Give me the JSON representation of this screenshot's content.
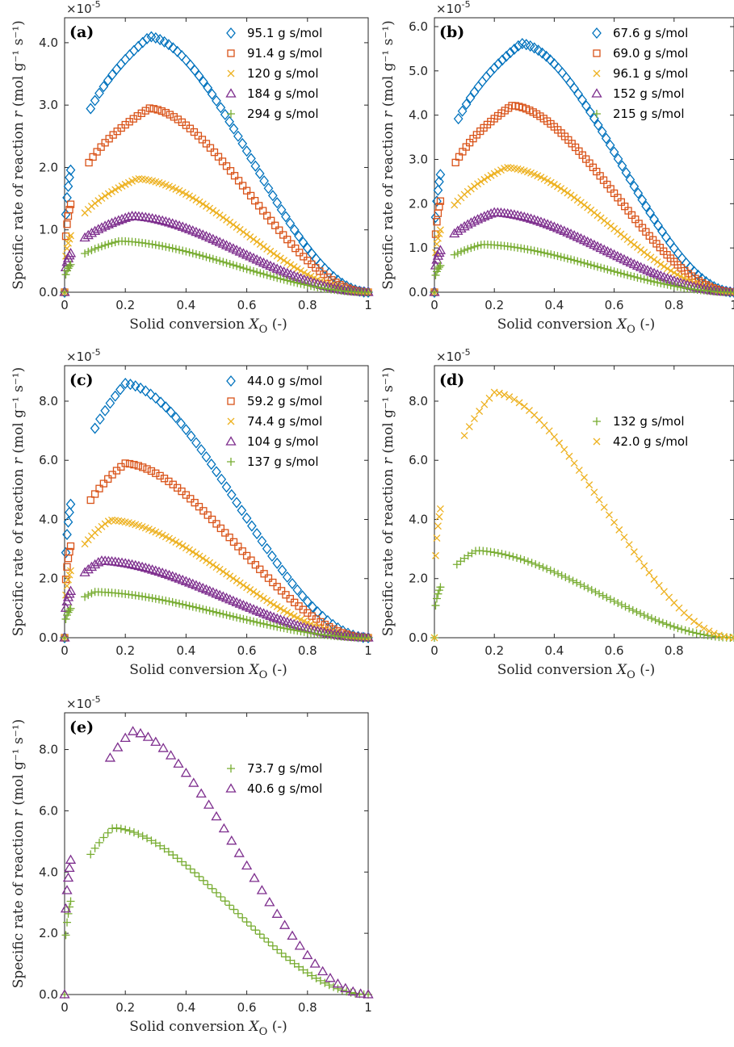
{
  "figure": {
    "y_exponent_label": "×10",
    "y_exponent_power": "-5",
    "xlabel_prefix": "Solid conversion ",
    "xlabel_var": "X",
    "xlabel_sub": "O",
    "xlabel_suffix": " (-)",
    "ylabel_prefix": "Specific rate of reaction ",
    "ylabel_var": "r",
    "ylabel_units": " (mol g⁻¹ s⁻¹)",
    "colors": {
      "blue": "#0072BD",
      "orange": "#D95319",
      "yellow": "#EDB120",
      "purple": "#7E2F8E",
      "green": "#77AC30"
    }
  },
  "chart_data": [
    {
      "type": "scatter",
      "panel": "(a)",
      "xlim": [
        0,
        1
      ],
      "ylim": [
        0,
        4.4
      ],
      "xticks": [
        0,
        0.2,
        0.4,
        0.6,
        0.8,
        1
      ],
      "xtick_labels": [
        "0",
        "0.2",
        "0.4",
        "0.6",
        "0.8",
        "1"
      ],
      "yticks": [
        0,
        1,
        2,
        3,
        4
      ],
      "ytick_labels": [
        "0.0",
        "1.0",
        "2.0",
        "3.0",
        "4.0"
      ],
      "legend_position": "top-right",
      "series": [
        {
          "name": "95.1 g s/mol",
          "marker": "diamond",
          "color": "#0072BD",
          "peak_x": 0.28,
          "peak_y": 4.1,
          "n": 70
        },
        {
          "name": "91.4 g s/mol",
          "marker": "square",
          "color": "#D95319",
          "peak_x": 0.28,
          "peak_y": 2.95,
          "n": 75
        },
        {
          "name": "120 g s/mol",
          "marker": "x",
          "color": "#EDB120",
          "peak_x": 0.24,
          "peak_y": 1.82,
          "n": 90
        },
        {
          "name": "184 g s/mol",
          "marker": "triangle",
          "color": "#7E2F8E",
          "peak_x": 0.22,
          "peak_y": 1.22,
          "n": 90
        },
        {
          "name": "294 g s/mol",
          "marker": "plus",
          "color": "#77AC30",
          "peak_x": 0.18,
          "peak_y": 0.82,
          "n": 90
        }
      ]
    },
    {
      "type": "scatter",
      "panel": "(b)",
      "xlim": [
        0,
        1
      ],
      "ylim": [
        0,
        6.2
      ],
      "xticks": [
        0,
        0.2,
        0.4,
        0.6,
        0.8,
        1
      ],
      "xtick_labels": [
        "0",
        "0.2",
        "0.4",
        "0.6",
        "0.8",
        "1"
      ],
      "yticks": [
        0,
        1,
        2,
        3,
        4,
        5,
        6
      ],
      "ytick_labels": [
        "0.0",
        "1.0",
        "2.0",
        "3.0",
        "4.0",
        "5.0",
        "6.0"
      ],
      "legend_position": "top-right",
      "series": [
        {
          "name": "67.6 g s/mol",
          "marker": "diamond",
          "color": "#0072BD",
          "peak_x": 0.29,
          "peak_y": 5.62,
          "n": 75
        },
        {
          "name": "69.0 g s/mol",
          "marker": "square",
          "color": "#D95319",
          "peak_x": 0.26,
          "peak_y": 4.22,
          "n": 85
        },
        {
          "name": "96.1 g s/mol",
          "marker": "x",
          "color": "#EDB120",
          "peak_x": 0.24,
          "peak_y": 2.82,
          "n": 90
        },
        {
          "name": "152 g s/mol",
          "marker": "triangle",
          "color": "#7E2F8E",
          "peak_x": 0.2,
          "peak_y": 1.8,
          "n": 90
        },
        {
          "name": "215 g s/mol",
          "marker": "plus",
          "color": "#77AC30",
          "peak_x": 0.16,
          "peak_y": 1.08,
          "n": 90
        }
      ]
    },
    {
      "type": "scatter",
      "panel": "(c)",
      "xlim": [
        0,
        1
      ],
      "ylim": [
        0,
        9.2
      ],
      "xticks": [
        0,
        0.2,
        0.4,
        0.6,
        0.8,
        1
      ],
      "xtick_labels": [
        "0",
        "0.2",
        "0.4",
        "0.6",
        "0.8",
        "1"
      ],
      "yticks": [
        0,
        2,
        4,
        6,
        8
      ],
      "ytick_labels": [
        "0.0",
        "2.0",
        "4.0",
        "6.0",
        "8.0"
      ],
      "legend_position": "top-right",
      "series": [
        {
          "name": "44.0 g s/mol",
          "marker": "diamond",
          "color": "#0072BD",
          "peak_x": 0.2,
          "peak_y": 8.6,
          "n": 60
        },
        {
          "name": "59.2 g s/mol",
          "marker": "square",
          "color": "#D95319",
          "peak_x": 0.2,
          "peak_y": 5.9,
          "n": 70
        },
        {
          "name": "74.4 g s/mol",
          "marker": "x",
          "color": "#EDB120",
          "peak_x": 0.15,
          "peak_y": 3.98,
          "n": 90
        },
        {
          "name": "104 g s/mol",
          "marker": "triangle",
          "color": "#7E2F8E",
          "peak_x": 0.12,
          "peak_y": 2.6,
          "n": 90
        },
        {
          "name": "137 g s/mol",
          "marker": "plus",
          "color": "#77AC30",
          "peak_x": 0.1,
          "peak_y": 1.55,
          "n": 90
        }
      ]
    },
    {
      "type": "scatter",
      "panel": "(d)",
      "xlim": [
        0,
        1
      ],
      "ylim": [
        0,
        9.2
      ],
      "xticks": [
        0,
        0.2,
        0.4,
        0.6,
        0.8
      ],
      "xtick_labels": [
        "0",
        "0.2",
        "0.4",
        "0.6",
        "0.8"
      ],
      "yticks": [
        0,
        2,
        4,
        6,
        8
      ],
      "ytick_labels": [
        "0.0",
        "2.0",
        "4.0",
        "6.0",
        "8.0"
      ],
      "legend_position": "top-right",
      "series": [
        {
          "name": "132 g s/mol",
          "marker": "plus",
          "color": "#77AC30",
          "peak_x": 0.14,
          "peak_y": 2.95,
          "n": 80
        },
        {
          "name": "42.0 g s/mol",
          "marker": "x",
          "color": "#EDB120",
          "peak_x": 0.2,
          "peak_y": 8.3,
          "n": 60
        }
      ]
    },
    {
      "type": "scatter",
      "panel": "(e)",
      "xlim": [
        0,
        1
      ],
      "ylim": [
        0,
        9.2
      ],
      "xticks": [
        0,
        0.2,
        0.4,
        0.6,
        0.8,
        1
      ],
      "xtick_labels": [
        "0",
        "0.2",
        "0.4",
        "0.6",
        "0.8",
        "1"
      ],
      "yticks": [
        0,
        2,
        4,
        6,
        8
      ],
      "ytick_labels": [
        "0.0",
        "2.0",
        "4.0",
        "6.0",
        "8.0"
      ],
      "legend_position": "top-right",
      "series": [
        {
          "name": "73.7 g s/mol",
          "marker": "plus",
          "color": "#77AC30",
          "peak_x": 0.16,
          "peak_y": 5.45,
          "n": 70
        },
        {
          "name": "40.6 g s/mol",
          "marker": "triangle",
          "color": "#7E2F8E",
          "peak_x": 0.22,
          "peak_y": 8.6,
          "n": 40
        }
      ]
    }
  ]
}
